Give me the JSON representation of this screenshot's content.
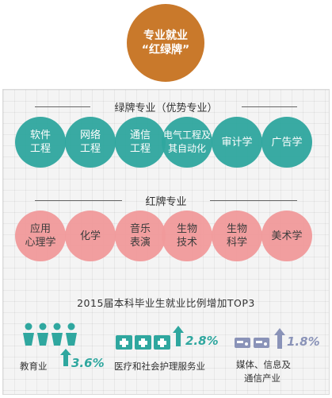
{
  "header": {
    "line1": "专业就业",
    "line2": "“红绿牌”"
  },
  "green_section": {
    "title": "绿牌专业（优势专业）",
    "items": [
      {
        "line1": "软件",
        "line2": "工程"
      },
      {
        "line1": "网络",
        "line2": "工程"
      },
      {
        "line1": "通信",
        "line2": "工程"
      },
      {
        "line1": "电气工程及",
        "line2": "其自动化"
      },
      {
        "line1": "审计学",
        "line2": ""
      },
      {
        "line1": "广告学",
        "line2": ""
      }
    ]
  },
  "red_section": {
    "title": "红牌专业",
    "items": [
      {
        "line1": "应用",
        "line2": "心理学"
      },
      {
        "line1": "化学",
        "line2": ""
      },
      {
        "line1": "音乐",
        "line2": "表演"
      },
      {
        "line1": "生物",
        "line2": "技术"
      },
      {
        "line1": "生物",
        "line2": "科学"
      },
      {
        "line1": "美术学",
        "line2": ""
      }
    ]
  },
  "top3": {
    "title": "2015届本科毕业生就业比例增加TOP3",
    "items": [
      {
        "label": "教育业",
        "value": "3.6%",
        "icon": "people-icon",
        "color": "#2fa79f"
      },
      {
        "label": "医疗和社会护理服务业",
        "value": "2.8%",
        "icon": "medical-kit-icon",
        "color": "#2fa79f"
      },
      {
        "label_line1": "媒体、信息及",
        "label_line2": "通信产业",
        "value": "1.8%",
        "icon": "media-device-icon",
        "color": "#8a93b8"
      }
    ]
  },
  "colors": {
    "accent_orange": "#c9792b",
    "green": "#2fa79f",
    "pink": "#f19a9b",
    "slate": "#8a93b8"
  }
}
